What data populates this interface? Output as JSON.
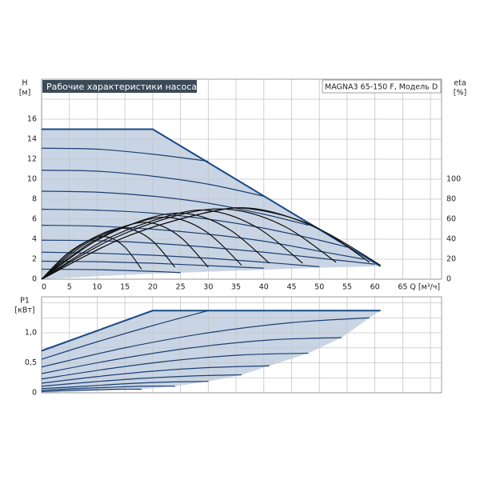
{
  "chart_data": [
    {
      "type": "line",
      "title": "Рабочие характеристики насоса",
      "model": "MAGNA3 65-150 F, Модель D",
      "ylabel": "H",
      "yunit": "[м]",
      "y2label": "eta",
      "y2unit": "[%]",
      "xlabel": "Q [м³/ч]",
      "xlim": [
        0,
        72
      ],
      "xticks": [
        0,
        5,
        10,
        15,
        20,
        25,
        30,
        35,
        40,
        45,
        50,
        55,
        60,
        65
      ],
      "xminor": [
        70
      ],
      "ylim": [
        0,
        20
      ],
      "yticks": [
        0,
        2,
        4,
        6,
        8,
        10,
        12,
        14,
        16
      ],
      "yminor": [
        18
      ],
      "y2lim": [
        0,
        200
      ],
      "y2ticks": [
        0,
        20,
        40,
        60,
        80,
        100
      ],
      "grid": true,
      "area": {
        "color": "#c9d5e4",
        "lower_x": [
          0,
          10,
          20,
          30,
          40,
          50,
          61
        ],
        "lower": [
          0,
          0.3,
          0.55,
          0.75,
          0.95,
          1.15,
          1.3
        ]
      },
      "series": [
        {
          "color": "#1a4a85",
          "line_width": 2,
          "smooth": false,
          "x": [
            0,
            20,
            61
          ],
          "values": [
            15,
            15,
            1.3
          ]
        },
        {
          "color": "#1c3f73",
          "line_width": 1.2,
          "smooth": true,
          "x": [
            0,
            10,
            20,
            30
          ],
          "values": [
            13.1,
            13.0,
            12.5,
            11.8
          ]
        },
        {
          "color": "#1c3f73",
          "line_width": 1.2,
          "smooth": true,
          "x": [
            0,
            10,
            20,
            30,
            40
          ],
          "values": [
            10.9,
            10.8,
            10.3,
            9.5,
            8.3
          ]
        },
        {
          "color": "#1c3f73",
          "line_width": 1.2,
          "smooth": true,
          "x": [
            0,
            10,
            20,
            30,
            40,
            48
          ],
          "values": [
            8.8,
            8.7,
            8.3,
            7.6,
            6.5,
            5.4
          ]
        },
        {
          "color": "#1c3f73",
          "line_width": 1.2,
          "smooth": true,
          "x": [
            0,
            10,
            20,
            30,
            40,
            50,
            55
          ],
          "values": [
            7.0,
            6.9,
            6.6,
            6.0,
            5.1,
            3.9,
            3.2
          ]
        },
        {
          "color": "#1c3f73",
          "line_width": 1.2,
          "smooth": true,
          "x": [
            0,
            10,
            20,
            30,
            40,
            50,
            58
          ],
          "values": [
            5.4,
            5.3,
            5.0,
            4.5,
            3.8,
            2.8,
            2.0
          ]
        },
        {
          "color": "#1c3f73",
          "line_width": 1.2,
          "smooth": true,
          "x": [
            0,
            10,
            20,
            30,
            40,
            50,
            60
          ],
          "values": [
            3.9,
            3.85,
            3.6,
            3.2,
            2.7,
            2.1,
            1.5
          ]
        },
        {
          "color": "#1c3f73",
          "line_width": 1.2,
          "smooth": true,
          "x": [
            0,
            10,
            20,
            30,
            40,
            50
          ],
          "values": [
            2.7,
            2.6,
            2.4,
            2.1,
            1.7,
            1.25
          ]
        },
        {
          "color": "#1c3f73",
          "line_width": 1.2,
          "smooth": true,
          "x": [
            0,
            10,
            20,
            30,
            40
          ],
          "values": [
            1.8,
            1.75,
            1.6,
            1.35,
            1.1
          ]
        },
        {
          "color": "#1c3f73",
          "line_width": 1.2,
          "smooth": true,
          "x": [
            0,
            10,
            20,
            25
          ],
          "values": [
            1.0,
            0.95,
            0.78,
            0.66
          ]
        },
        {
          "color": "#111111",
          "line_width": 1.2,
          "smooth": true,
          "axis": "y2",
          "x": [
            0,
            4.5,
            9,
            12,
            15,
            18
          ],
          "values": [
            0,
            25,
            40,
            42,
            32,
            10
          ]
        },
        {
          "color": "#111111",
          "line_width": 1.2,
          "smooth": true,
          "axis": "y2",
          "x": [
            0,
            6,
            12,
            16,
            20,
            24
          ],
          "values": [
            0,
            30,
            48,
            50,
            38,
            12
          ]
        },
        {
          "color": "#111111",
          "line_width": 1.2,
          "smooth": true,
          "axis": "y2",
          "x": [
            0,
            7.5,
            15,
            20,
            25,
            30
          ],
          "values": [
            0,
            34,
            53,
            56,
            42,
            12
          ]
        },
        {
          "color": "#111111",
          "line_width": 1.2,
          "smooth": true,
          "axis": "y2",
          "x": [
            0,
            9,
            18,
            24,
            30,
            36
          ],
          "values": [
            0,
            37,
            58,
            61,
            46,
            14
          ]
        },
        {
          "color": "#111111",
          "line_width": 1.2,
          "smooth": true,
          "axis": "y2",
          "x": [
            0,
            10,
            20,
            27,
            34,
            41
          ],
          "values": [
            0,
            39,
            62,
            65,
            49,
            16
          ]
        },
        {
          "color": "#111111",
          "line_width": 1.2,
          "smooth": true,
          "axis": "y2",
          "x": [
            0,
            12,
            24,
            31,
            39,
            47
          ],
          "values": [
            0,
            41,
            65,
            68,
            51,
            16
          ]
        },
        {
          "color": "#111111",
          "line_width": 1.2,
          "smooth": true,
          "axis": "y2",
          "x": [
            0,
            13,
            26,
            35,
            44,
            53
          ],
          "values": [
            0,
            41,
            66,
            69,
            52,
            17
          ]
        },
        {
          "color": "#111111",
          "line_width": 1.2,
          "smooth": true,
          "axis": "y2",
          "x": [
            0,
            15,
            30,
            38,
            49,
            59
          ],
          "values": [
            0,
            42,
            67,
            70,
            53,
            17
          ]
        },
        {
          "color": "#111111",
          "line_width": 1.2,
          "smooth": true,
          "axis": "y2",
          "x": [
            0,
            15,
            30,
            39,
            50,
            61
          ],
          "values": [
            0,
            42,
            67,
            70,
            50,
            14
          ]
        }
      ]
    },
    {
      "type": "line",
      "ylabel": "P1",
      "yunit": "[кВт]",
      "xlim": [
        0,
        72
      ],
      "xgrid": [
        0,
        5,
        10,
        15,
        20,
        25,
        30,
        35,
        40,
        45,
        50,
        55,
        60,
        65,
        70
      ],
      "ylim": [
        0,
        1.6
      ],
      "yticks": [
        0,
        {
          "value": 0.5,
          "label": "0,5"
        },
        {
          "value": 1.0,
          "label": "1,0"
        }
      ],
      "yminor": [
        0.25,
        0.75,
        1.25,
        1.5
      ],
      "grid": true,
      "area": {
        "color": "#c9d5e4",
        "lower_x": [
          0,
          18,
          24,
          30,
          36,
          41,
          48,
          54,
          59,
          61
        ],
        "lower": [
          0,
          0.06,
          0.11,
          0.19,
          0.3,
          0.45,
          0.66,
          0.92,
          1.25,
          1.37
        ]
      },
      "series": [
        {
          "color": "#1a4a85",
          "line_width": 2,
          "smooth": false,
          "x": [
            0,
            20,
            61
          ],
          "values": [
            0.7,
            1.37,
            1.37
          ]
        },
        {
          "color": "#1c3f73",
          "line_width": 1.2,
          "smooth": true,
          "x": [
            0,
            10,
            20,
            30
          ],
          "values": [
            0.56,
            0.85,
            1.12,
            1.37
          ]
        },
        {
          "color": "#1c3f73",
          "line_width": 1.2,
          "smooth": true,
          "x": [
            0,
            15,
            30,
            45,
            59
          ],
          "values": [
            0.43,
            0.75,
            1.0,
            1.17,
            1.25
          ]
        },
        {
          "color": "#1c3f73",
          "line_width": 1.2,
          "smooth": true,
          "x": [
            0,
            13,
            27,
            41,
            54
          ],
          "values": [
            0.32,
            0.55,
            0.75,
            0.88,
            0.92
          ]
        },
        {
          "color": "#1c3f73",
          "line_width": 1.2,
          "smooth": true,
          "x": [
            0,
            12,
            24,
            36,
            48
          ],
          "values": [
            0.23,
            0.4,
            0.54,
            0.63,
            0.66
          ]
        },
        {
          "color": "#1c3f73",
          "line_width": 1.2,
          "smooth": true,
          "x": [
            0,
            10,
            20,
            30,
            41
          ],
          "values": [
            0.16,
            0.27,
            0.36,
            0.42,
            0.45
          ]
        },
        {
          "color": "#1c3f73",
          "line_width": 1.2,
          "smooth": true,
          "x": [
            0,
            9,
            18,
            27,
            36
          ],
          "values": [
            0.11,
            0.18,
            0.24,
            0.28,
            0.3
          ]
        },
        {
          "color": "#1c3f73",
          "line_width": 1.2,
          "smooth": true,
          "x": [
            0,
            8,
            15,
            23,
            30
          ],
          "values": [
            0.07,
            0.11,
            0.15,
            0.18,
            0.19
          ]
        },
        {
          "color": "#1c3f73",
          "line_width": 1.2,
          "smooth": true,
          "x": [
            0,
            6,
            12,
            18,
            24
          ],
          "values": [
            0.04,
            0.07,
            0.09,
            0.11,
            0.11
          ]
        },
        {
          "color": "#1c3f73",
          "line_width": 1.2,
          "smooth": true,
          "x": [
            0,
            5,
            10,
            14,
            18
          ],
          "values": [
            0.02,
            0.04,
            0.05,
            0.06,
            0.06
          ]
        }
      ]
    }
  ]
}
